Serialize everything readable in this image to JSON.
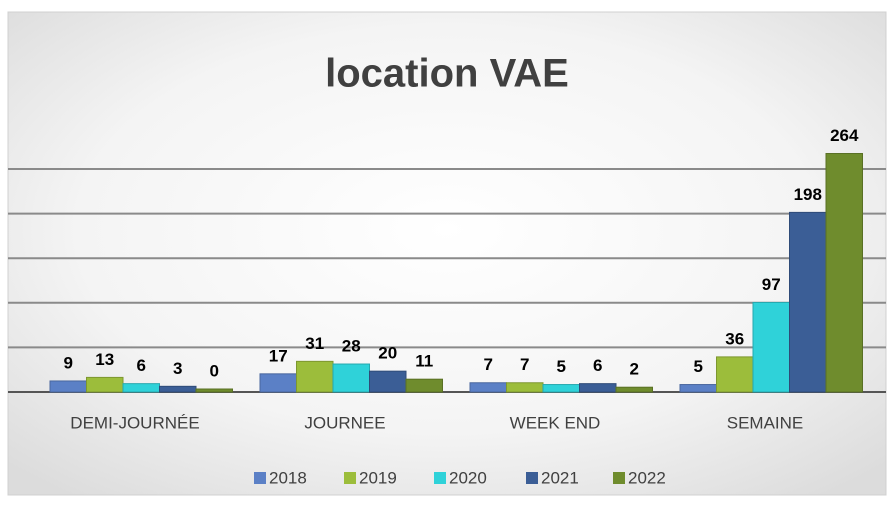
{
  "chart_data": {
    "type": "bar",
    "title": "location VAE",
    "categories": [
      "DEMI-JOURNÉE",
      "JOURNEE",
      "WEEK END",
      "SEMAINE"
    ],
    "series": [
      {
        "name": "2018",
        "color": "#5b80c6",
        "values": [
          9,
          17,
          7,
          5
        ]
      },
      {
        "name": "2019",
        "color": "#9cbd3b",
        "values": [
          13,
          31,
          7,
          36
        ]
      },
      {
        "name": "2020",
        "color": "#2fd2d9",
        "values": [
          6,
          28,
          5,
          97
        ]
      },
      {
        "name": "2021",
        "color": "#3b5e96",
        "values": [
          3,
          20,
          6,
          198
        ]
      },
      {
        "name": "2022",
        "color": "#6f8c2d",
        "values": [
          0,
          11,
          2,
          264
        ]
      }
    ],
    "ylim": [
      0,
      300
    ],
    "yticks": [
      0,
      50,
      100,
      150,
      200,
      250
    ],
    "grid": true,
    "legend": "bottom"
  }
}
